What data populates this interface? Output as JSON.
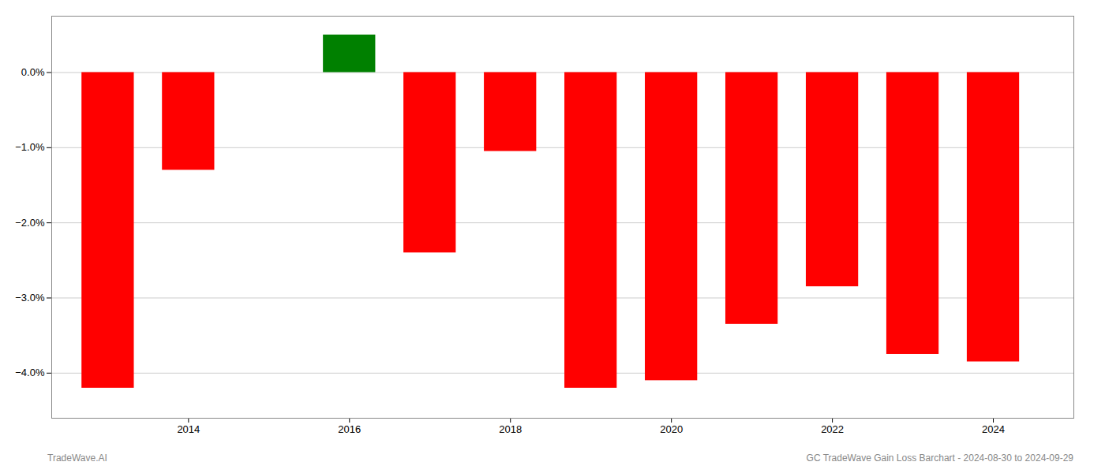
{
  "chart_data": {
    "type": "bar",
    "x": [
      2013,
      2014,
      2016,
      2017,
      2018,
      2019,
      2020,
      2021,
      2022,
      2023,
      2024
    ],
    "values": [
      -4.2,
      -1.3,
      0.5,
      -2.4,
      -1.05,
      -4.2,
      -4.1,
      -3.35,
      -2.85,
      -3.75,
      -3.85
    ],
    "colors": [
      "#ff0000",
      "#ff0000",
      "#008000",
      "#ff0000",
      "#ff0000",
      "#ff0000",
      "#ff0000",
      "#ff0000",
      "#ff0000",
      "#ff0000",
      "#ff0000"
    ],
    "xlim": [
      2012.3,
      2025.0
    ],
    "xticks": [
      2014,
      2016,
      2018,
      2020,
      2022,
      2024
    ],
    "ylim": [
      -4.6,
      0.75
    ],
    "yticks": [
      {
        "value": 0.0,
        "label": "0.0%"
      },
      {
        "value": -1.0,
        "label": "−1.0%"
      },
      {
        "value": -2.0,
        "label": "−2.0%"
      },
      {
        "value": -3.0,
        "label": "−3.0%"
      },
      {
        "value": -4.0,
        "label": "−4.0%"
      }
    ],
    "grid": true,
    "annotations": [
      "TradeWave.AI",
      "GC TradeWave Gain Loss Barchart - 2024-08-30 to 2024-09-29"
    ]
  }
}
